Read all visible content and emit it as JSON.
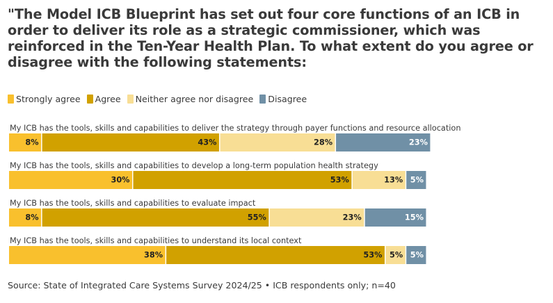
{
  "chart_data": {
    "type": "bar",
    "orientation": "horizontal",
    "stacked": true,
    "title": "\"The Model ICB Blueprint has set out four core functions of an ICB in order to deliver its role as a strategic commissioner, which was reinforced in the Ten-Year Health Plan. To what extent do you agree or disagree with the following statements:",
    "categories": [
      "My ICB has the tools, skills and capabilities to deliver the strategy through payer functions and resource allocation",
      "My ICB has the tools, skills and capabilities to develop a long-term population health strategy",
      "My ICB has the tools, skills and capabilities to evaluate impact",
      "My ICB has the tools, skills and capabilities to understand its local context"
    ],
    "series": [
      {
        "name": "Strongly agree",
        "color": "#F9C02D",
        "values": [
          8,
          30,
          8,
          38
        ],
        "labels": [
          "8%",
          "30%",
          "8%",
          "38%"
        ]
      },
      {
        "name": "Agree",
        "color": "#D1A100",
        "values": [
          43,
          53,
          55,
          53
        ],
        "labels": [
          "43%",
          "53%",
          "55%",
          "53%"
        ]
      },
      {
        "name": "Neither agree nor disagree",
        "color": "#F8DE95",
        "values": [
          28,
          13,
          23,
          5
        ],
        "labels": [
          "28%",
          "13%",
          "23%",
          "5%"
        ]
      },
      {
        "name": "Disagree",
        "color": "#7090A6",
        "values": [
          23,
          5,
          15,
          5
        ],
        "labels": [
          "23%",
          "5%",
          "15%",
          "5%"
        ]
      }
    ],
    "legend_position": "top-left",
    "grid": false,
    "xlim": [
      0,
      100
    ]
  },
  "source": "Source: State of Integrated Care Systems Survey 2024/25 • ICB respondents only; n=40"
}
